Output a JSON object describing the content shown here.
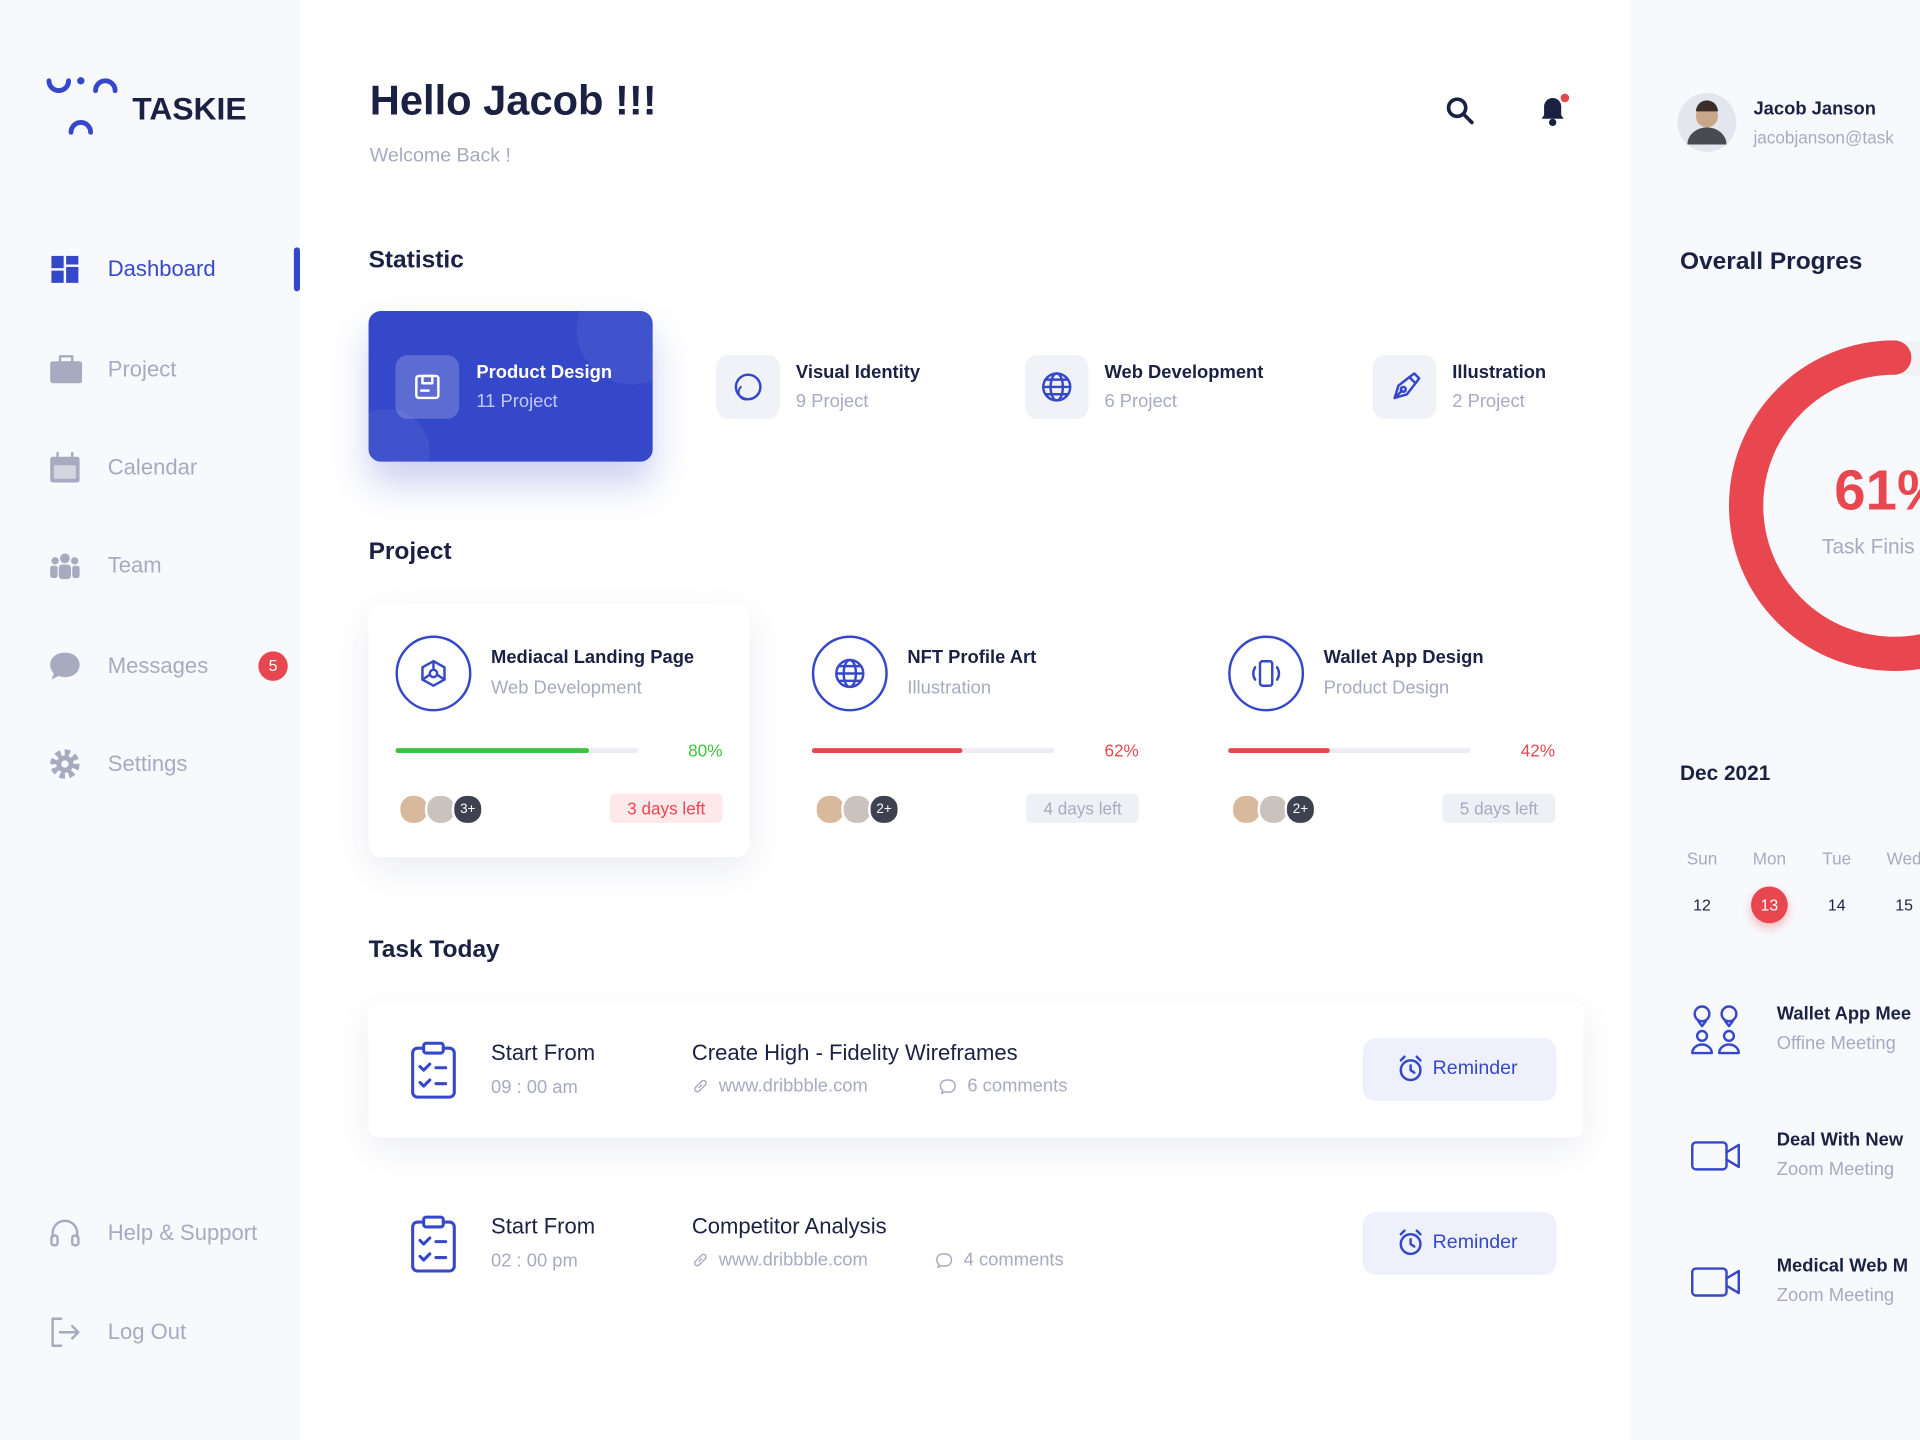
{
  "brand": "TASKIE",
  "nav": [
    {
      "label": "Dashboard",
      "icon": "grid",
      "active": true
    },
    {
      "label": "Project",
      "icon": "case"
    },
    {
      "label": "Calendar",
      "icon": "cal"
    },
    {
      "label": "Team",
      "icon": "team"
    },
    {
      "label": "Messages",
      "icon": "msg",
      "badge": "5"
    },
    {
      "label": "Settings",
      "icon": "gear"
    }
  ],
  "nav_footer": [
    {
      "label": "Help & Support",
      "icon": "headset"
    },
    {
      "label": "Log Out",
      "icon": "logout"
    }
  ],
  "header": {
    "greeting": "Hello Jacob !!!",
    "subtitle": "Welcome Back !"
  },
  "user": {
    "name": "Jacob Janson",
    "email": "jacobjanson@task"
  },
  "statistic": {
    "title": "Statistic",
    "items": [
      {
        "name": "Product Design",
        "count": "11 Project",
        "icon": "box",
        "active": true
      },
      {
        "name": "Visual Identity",
        "count": "9 Project",
        "icon": "swirl"
      },
      {
        "name": "Web Development",
        "count": "6 Project",
        "icon": "globe"
      },
      {
        "name": "Illustration",
        "count": "2 Project",
        "icon": "pen"
      }
    ]
  },
  "projects": {
    "title": "Project",
    "items": [
      {
        "name": "Mediacal Landing Page",
        "category": "Web Development",
        "icon": "net",
        "progress": {
          "value": 80,
          "label": "80%"
        },
        "color": "#3fc13f",
        "members_more": "3+",
        "deadline": "3 days left",
        "urgent": true
      },
      {
        "name": "NFT Profile Art",
        "category": "Illustration",
        "icon": "globe",
        "progress": {
          "value": 62,
          "label": "62%"
        },
        "color": "#e8474f",
        "members_more": "2+",
        "deadline": "4 days left"
      },
      {
        "name": "Wallet App Design",
        "category": "Product Design",
        "icon": "phone",
        "progress": {
          "value": 42,
          "label": "42%"
        },
        "color": "#e8474f",
        "members_more": "2+",
        "deadline": "5 days left"
      }
    ]
  },
  "tasks": {
    "title": "Task Today",
    "items": [
      {
        "start_label": "Start From",
        "time": "09 : 00 am",
        "name": "Create High - Fidelity Wireframes",
        "link": "www.dribbble.com",
        "comments": "6 comments",
        "button": "Reminder",
        "highlight": true
      },
      {
        "start_label": "Start From",
        "time": "02 : 00 pm",
        "name": "Competitor Analysis",
        "link": "www.dribbble.com",
        "comments": "4 comments",
        "button": "Reminder"
      }
    ]
  },
  "overall": {
    "title": "Overall Progres",
    "progress": {
      "value": 61,
      "label": "61%"
    },
    "caption": "Task Finis",
    "color": "#e8474f"
  },
  "calendar": {
    "month": "Dec 2021",
    "days": [
      {
        "day": "Sun",
        "date": "12"
      },
      {
        "day": "Mon",
        "date": "13",
        "selected": true
      },
      {
        "day": "Tue",
        "date": "14"
      },
      {
        "day": "Wed",
        "date": "15"
      }
    ]
  },
  "meetings": [
    {
      "title": "Wallet App Mee",
      "subtitle": "Offine Meeting",
      "icon": "people"
    },
    {
      "title": "Deal With New",
      "subtitle": "Zoom Meeting",
      "icon": "video"
    },
    {
      "title": "Medical Web M",
      "subtitle": "Zoom Meeting",
      "icon": "video"
    }
  ]
}
